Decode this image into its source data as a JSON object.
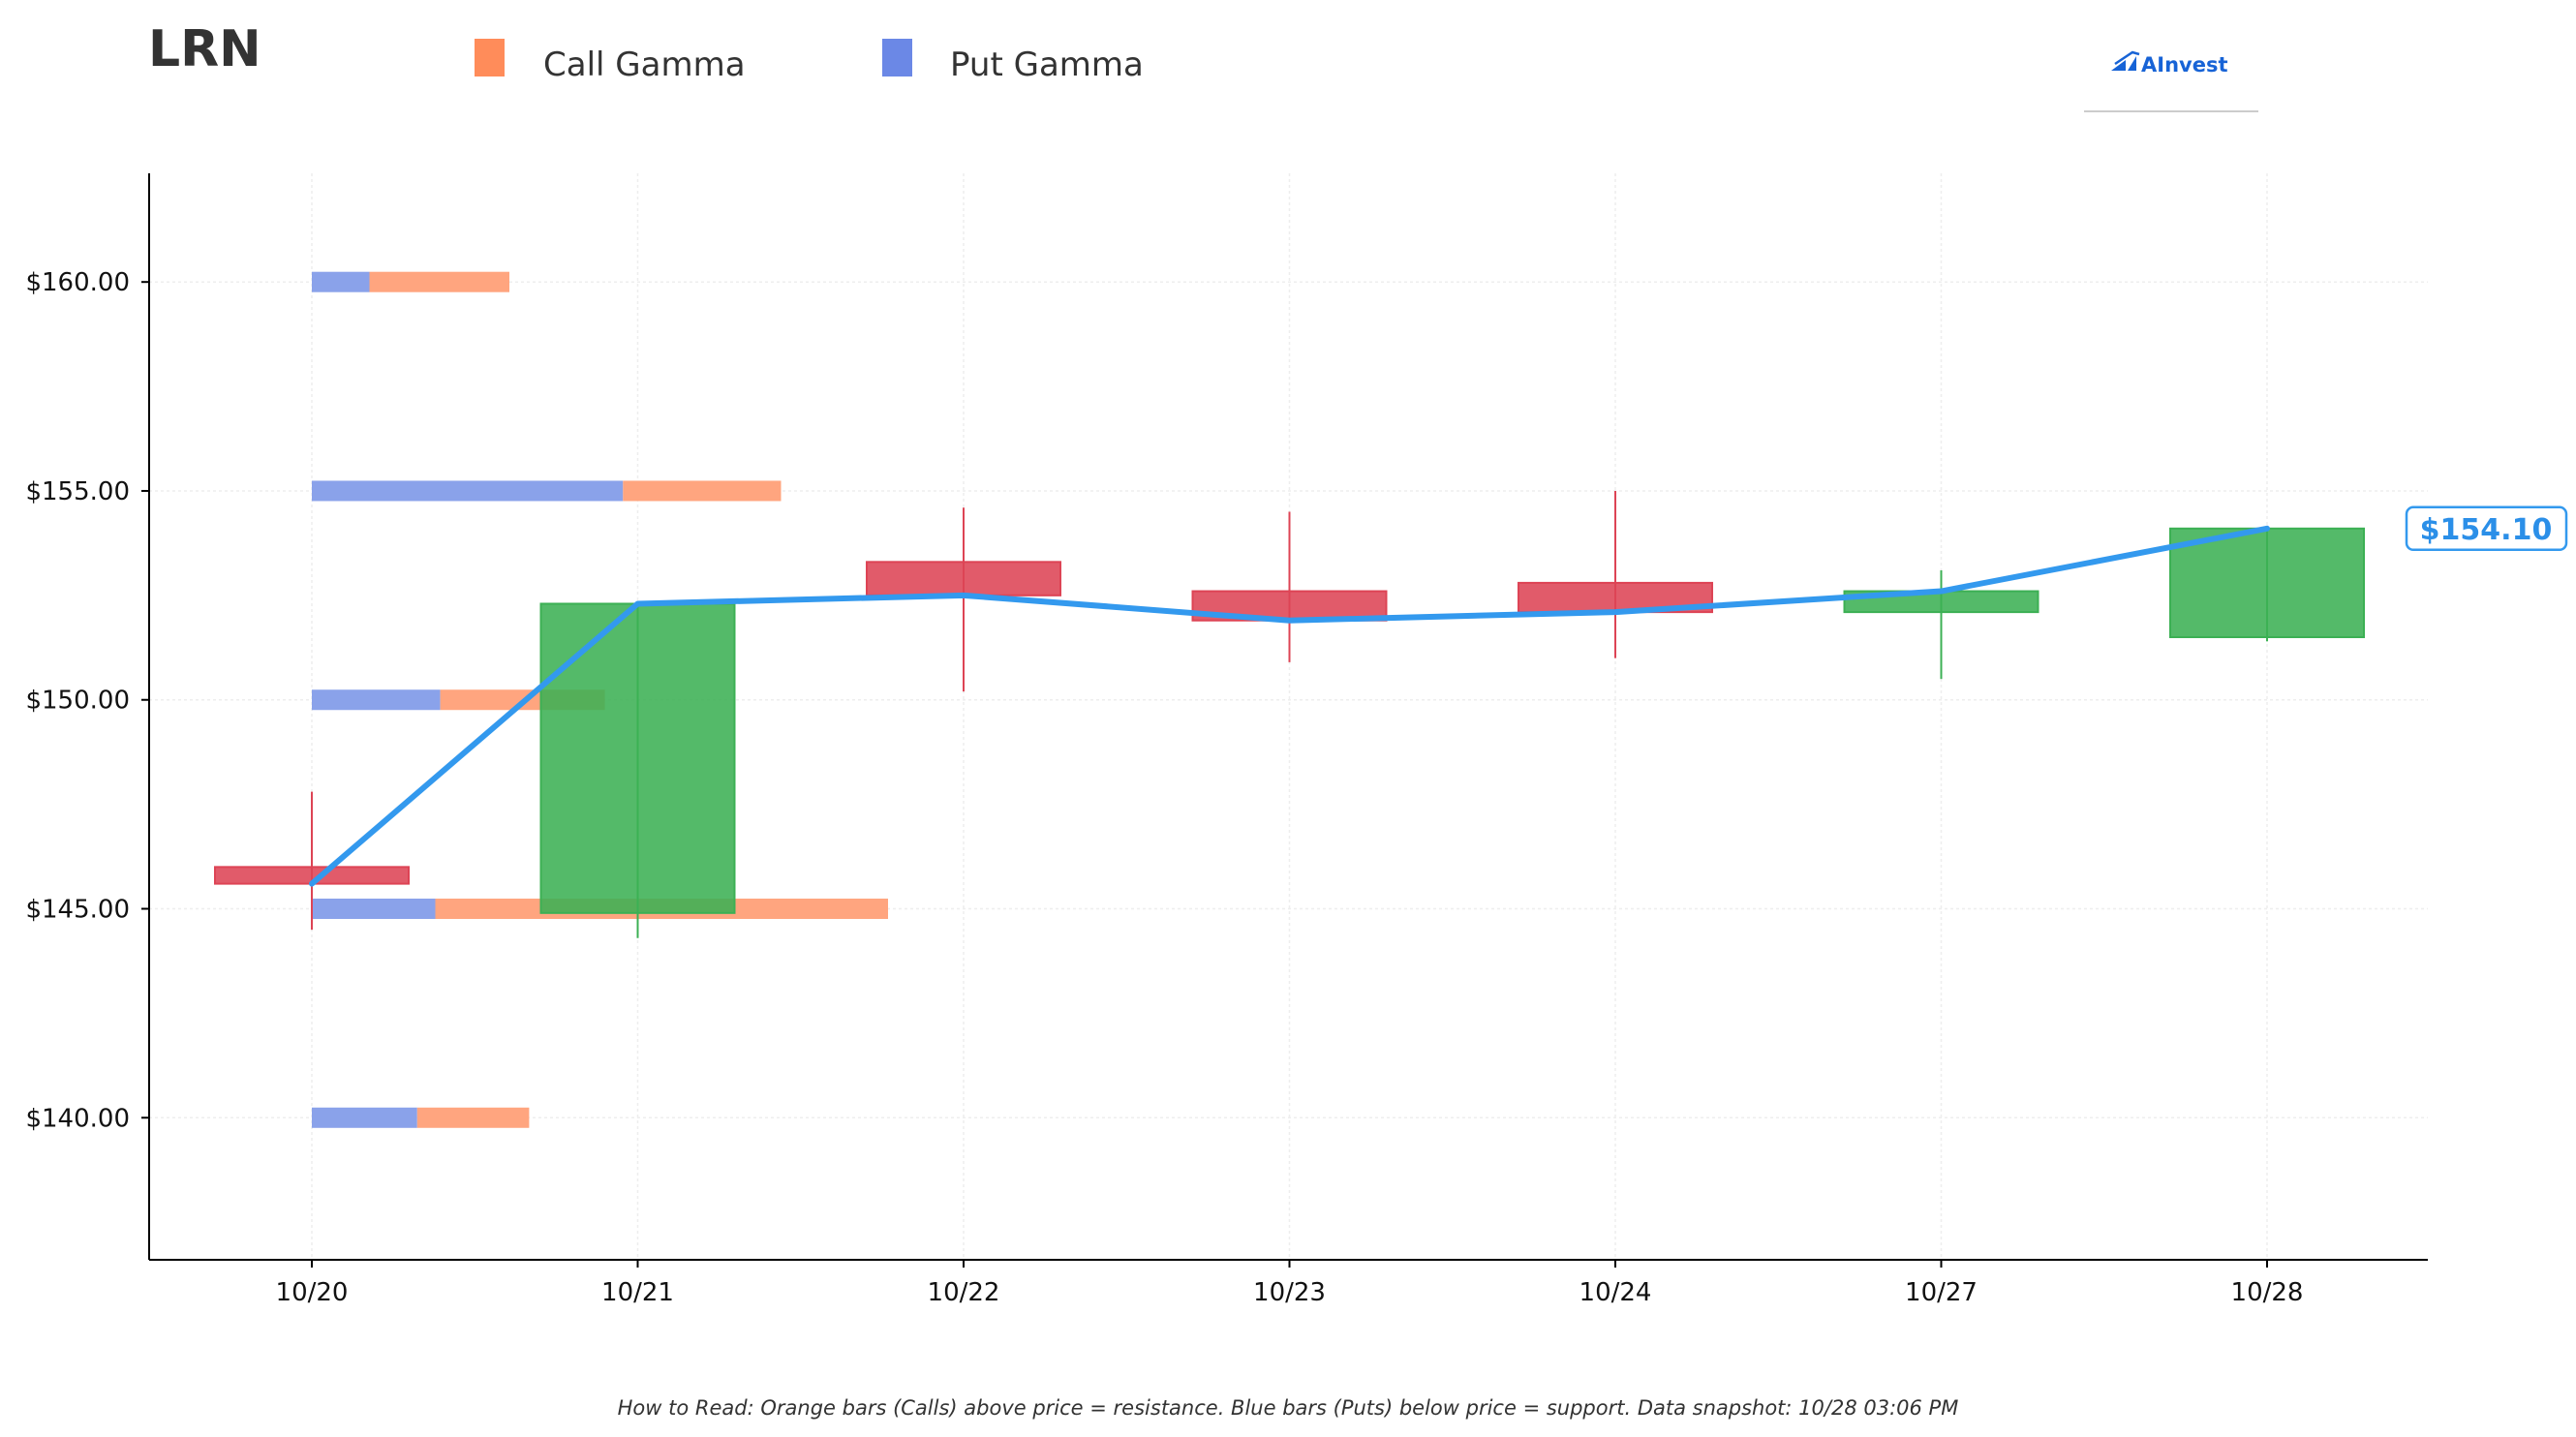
{
  "title": "LRN",
  "legend": [
    {
      "label": "Call Gamma",
      "color": "#ff8c5a"
    },
    {
      "label": "Put Gamma",
      "color": "#6b88e6"
    }
  ],
  "logo_text": "AInvest",
  "footer_note": "How to Read: Orange bars (Calls) above price = resistance. Blue bars (Puts) below price = support. Data snapshot: 10/28 03:06 PM",
  "colors": {
    "call": "#ffa57f",
    "put": "#8aa2ea",
    "bull": "#3cb054",
    "bear": "#dd4455",
    "price_line": "#3399ee",
    "axis": "#000000",
    "grid": "#eeeeee"
  },
  "chart_data": {
    "type": "candlestick+gamma-bars",
    "title": "LRN",
    "xlabel": "",
    "ylabel": "",
    "categories": [
      "10/20",
      "10/21",
      "10/22",
      "10/23",
      "10/24",
      "10/27",
      "10/28"
    ],
    "ylim": [
      136.6,
      162.6
    ],
    "yticks": [
      140,
      145,
      150,
      155,
      160
    ],
    "ytick_labels": [
      "$140.00",
      "$145.00",
      "$150.00",
      "$155.00",
      "$160.00"
    ],
    "grid": true,
    "legend_position": "top",
    "candles": [
      {
        "date": "10/20",
        "open": 146.0,
        "high": 147.8,
        "low": 144.5,
        "close": 145.6
      },
      {
        "date": "10/21",
        "open": 144.9,
        "high": 152.3,
        "low": 144.3,
        "close": 152.3
      },
      {
        "date": "10/22",
        "open": 153.3,
        "high": 154.6,
        "low": 150.2,
        "close": 152.5
      },
      {
        "date": "10/23",
        "open": 152.6,
        "high": 154.5,
        "low": 150.9,
        "close": 151.9
      },
      {
        "date": "10/24",
        "open": 152.8,
        "high": 155.0,
        "low": 151.0,
        "close": 152.1
      },
      {
        "date": "10/27",
        "open": 152.1,
        "high": 153.1,
        "low": 150.5,
        "close": 152.6
      },
      {
        "date": "10/28",
        "open": 151.5,
        "high": 154.1,
        "low": 151.4,
        "close": 154.1
      }
    ],
    "close_line": [
      145.6,
      152.3,
      152.5,
      151.9,
      152.1,
      152.6,
      154.1
    ],
    "last_price_label": "$154.10",
    "gamma": [
      {
        "strike": 160,
        "put_gamma": 0.35,
        "call_gamma": 0.85
      },
      {
        "strike": 155,
        "put_gamma": 1.89,
        "call_gamma": 0.96
      },
      {
        "strike": 150,
        "put_gamma": 0.78,
        "call_gamma": 1.0
      },
      {
        "strike": 145,
        "put_gamma": 0.75,
        "call_gamma": 2.75
      },
      {
        "strike": 140,
        "put_gamma": 0.64,
        "call_gamma": 0.68
      }
    ]
  }
}
